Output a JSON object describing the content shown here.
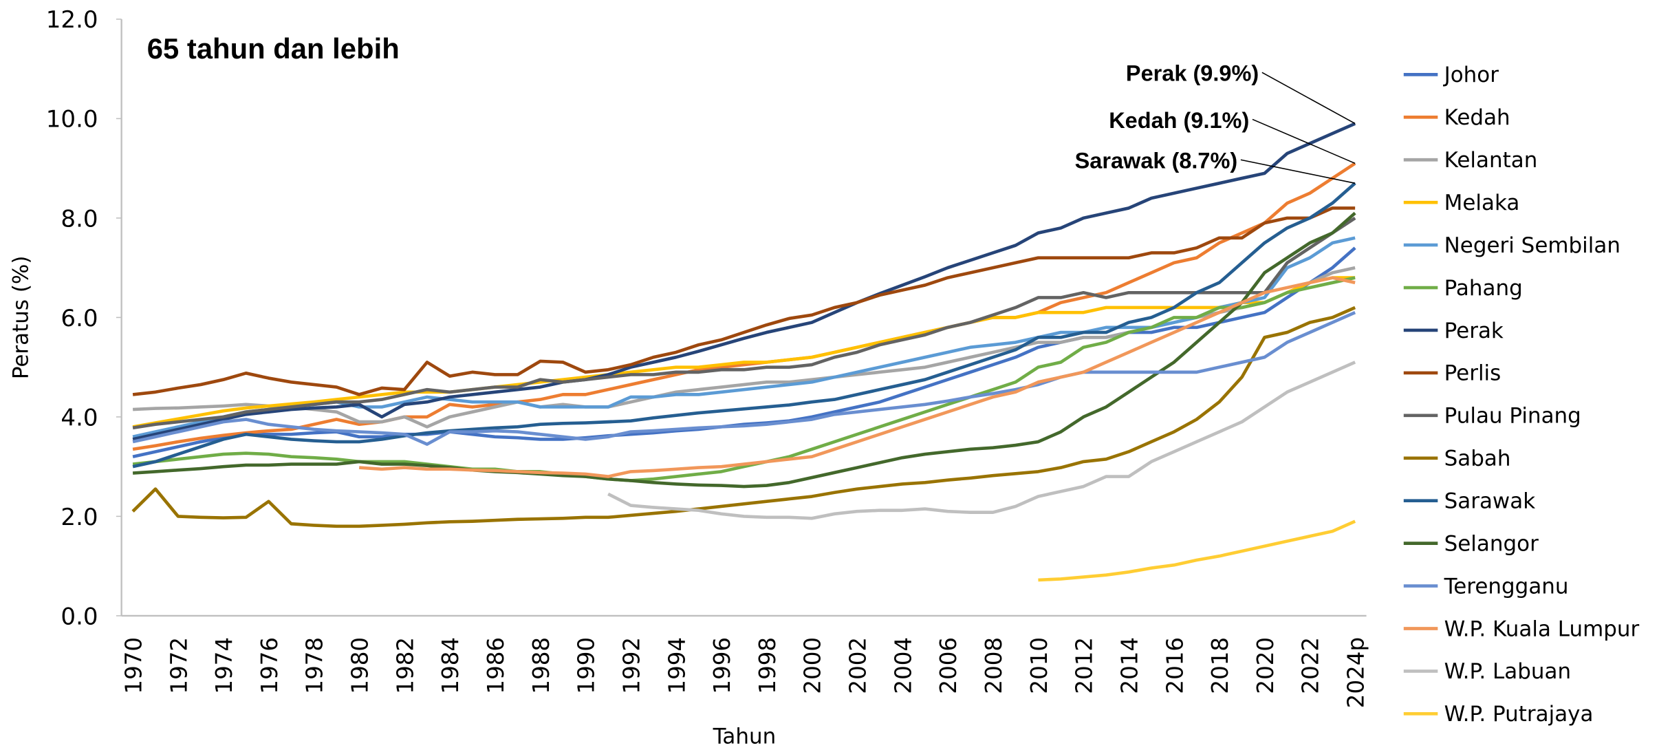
{
  "chart_data": {
    "type": "line",
    "title": "65 tahun dan lebih",
    "x_label": "Tahun",
    "y_label": "Peratus (%)",
    "legend": "right",
    "grid": false,
    "ylim": [
      0,
      12
    ],
    "yticks": [
      {
        "value": 0,
        "label": "0.0"
      },
      {
        "value": 2,
        "label": "2.0"
      },
      {
        "value": 4,
        "label": "4.0"
      },
      {
        "value": 6,
        "label": "6.0"
      },
      {
        "value": 8,
        "label": "8.0"
      },
      {
        "value": 10,
        "label": "10.0"
      },
      {
        "value": 12,
        "label": "12.0"
      }
    ],
    "categories": [
      "1970",
      null,
      "1972",
      null,
      "1974",
      null,
      "1976",
      null,
      "1978",
      null,
      "1980",
      null,
      "1982",
      null,
      "1984",
      null,
      "1986",
      null,
      "1988",
      null,
      "1990",
      null,
      "1992",
      null,
      "1994",
      null,
      "1996",
      null,
      "1998",
      null,
      "2000",
      null,
      "2002",
      null,
      "2004",
      null,
      "2006",
      null,
      "2008",
      null,
      "2010",
      null,
      "2012",
      null,
      "2014",
      null,
      "2016",
      null,
      "2018",
      null,
      "2020",
      null,
      "2022",
      null,
      "2024p"
    ],
    "annotations": [
      {
        "text": "Perak (9.9%)",
        "series": "Perak"
      },
      {
        "text": "Kedah (9.1%)",
        "series": "Kedah"
      },
      {
        "text": "Sarawak (8.7%)",
        "series": "Sarawak"
      }
    ],
    "series": [
      {
        "name": "Johor",
        "color": "#4472C4",
        "values": [
          3.2,
          3.3,
          3.4,
          3.5,
          3.58,
          3.65,
          3.65,
          3.65,
          3.68,
          3.7,
          3.6,
          3.6,
          3.65,
          3.65,
          3.7,
          3.65,
          3.6,
          3.58,
          3.55,
          3.55,
          3.58,
          3.62,
          3.65,
          3.68,
          3.72,
          3.75,
          3.8,
          3.85,
          3.88,
          3.92,
          4.0,
          4.1,
          4.2,
          4.3,
          4.45,
          4.6,
          4.75,
          4.9,
          5.05,
          5.2,
          5.4,
          5.5,
          5.6,
          5.6,
          5.7,
          5.7,
          5.8,
          5.8,
          5.9,
          6.0,
          6.1,
          6.4,
          6.7,
          7.0,
          7.4
        ]
      },
      {
        "name": "Kedah",
        "color": "#ED7D31",
        "values": [
          3.35,
          3.42,
          3.5,
          3.57,
          3.63,
          3.68,
          3.72,
          3.75,
          3.85,
          3.95,
          3.85,
          3.9,
          4.0,
          4.0,
          4.25,
          4.2,
          4.25,
          4.3,
          4.35,
          4.45,
          4.45,
          4.55,
          4.65,
          4.75,
          4.85,
          4.95,
          5.0,
          5.05,
          5.1,
          5.15,
          5.2,
          5.3,
          5.4,
          5.5,
          5.6,
          5.7,
          5.8,
          5.9,
          6.0,
          6.0,
          6.1,
          6.3,
          6.4,
          6.5,
          6.7,
          6.9,
          7.1,
          7.2,
          7.5,
          7.7,
          7.9,
          8.3,
          8.5,
          8.8,
          9.1
        ]
      },
      {
        "name": "Kelantan",
        "color": "#A5A5A5",
        "values": [
          4.15,
          4.17,
          4.18,
          4.2,
          4.22,
          4.25,
          4.22,
          4.2,
          4.15,
          4.1,
          3.9,
          3.9,
          4.0,
          3.8,
          4.0,
          4.1,
          4.2,
          4.3,
          4.2,
          4.25,
          4.2,
          4.2,
          4.3,
          4.4,
          4.5,
          4.55,
          4.6,
          4.65,
          4.7,
          4.7,
          4.75,
          4.8,
          4.85,
          4.9,
          4.95,
          5.0,
          5.1,
          5.2,
          5.3,
          5.4,
          5.5,
          5.5,
          5.6,
          5.6,
          5.7,
          5.8,
          5.9,
          6.0,
          6.1,
          6.2,
          6.3,
          6.5,
          6.7,
          6.9,
          7.0
        ]
      },
      {
        "name": "Melaka",
        "color": "#FFC000",
        "values": [
          3.8,
          3.88,
          3.96,
          4.04,
          4.12,
          4.18,
          4.22,
          4.26,
          4.3,
          4.35,
          4.4,
          4.45,
          4.5,
          4.5,
          4.5,
          4.55,
          4.6,
          4.65,
          4.7,
          4.75,
          4.8,
          4.85,
          4.9,
          4.95,
          5.0,
          5.0,
          5.05,
          5.1,
          5.1,
          5.15,
          5.2,
          5.3,
          5.4,
          5.5,
          5.6,
          5.7,
          5.8,
          5.9,
          6.0,
          6.0,
          6.1,
          6.1,
          6.1,
          6.2,
          6.2,
          6.2,
          6.2,
          6.2,
          6.2,
          6.3,
          6.3,
          6.5,
          6.7,
          6.8,
          6.8
        ]
      },
      {
        "name": "Negeri Sembilan",
        "color": "#5B9BD5",
        "values": [
          3.6,
          3.7,
          3.8,
          3.9,
          4.0,
          4.1,
          4.15,
          4.2,
          4.25,
          4.3,
          4.2,
          4.2,
          4.3,
          4.4,
          4.35,
          4.3,
          4.3,
          4.3,
          4.2,
          4.2,
          4.2,
          4.2,
          4.4,
          4.4,
          4.45,
          4.45,
          4.5,
          4.55,
          4.6,
          4.65,
          4.7,
          4.8,
          4.9,
          5.0,
          5.1,
          5.2,
          5.3,
          5.4,
          5.45,
          5.5,
          5.6,
          5.7,
          5.7,
          5.8,
          5.8,
          5.8,
          5.9,
          6.0,
          6.2,
          6.3,
          6.4,
          7.0,
          7.2,
          7.5,
          7.6
        ]
      },
      {
        "name": "Pahang",
        "color": "#70AD47",
        "values": [
          3.05,
          3.1,
          3.15,
          3.2,
          3.25,
          3.27,
          3.25,
          3.2,
          3.18,
          3.15,
          3.1,
          3.1,
          3.1,
          3.05,
          3.0,
          2.95,
          2.95,
          2.9,
          2.9,
          2.85,
          2.8,
          2.75,
          2.72,
          2.75,
          2.8,
          2.85,
          2.9,
          3.0,
          3.1,
          3.2,
          3.35,
          3.5,
          3.65,
          3.8,
          3.95,
          4.1,
          4.25,
          4.4,
          4.55,
          4.7,
          5.0,
          5.1,
          5.4,
          5.5,
          5.7,
          5.8,
          6.0,
          6.0,
          6.2,
          6.2,
          6.3,
          6.5,
          6.6,
          6.7,
          6.8
        ]
      },
      {
        "name": "Perak",
        "color": "#264478",
        "values": [
          3.55,
          3.65,
          3.75,
          3.85,
          3.95,
          4.05,
          4.1,
          4.15,
          4.18,
          4.2,
          4.25,
          4.0,
          4.25,
          4.3,
          4.4,
          4.45,
          4.5,
          4.55,
          4.6,
          4.7,
          4.75,
          4.85,
          5.0,
          5.1,
          5.2,
          5.32,
          5.45,
          5.58,
          5.7,
          5.8,
          5.9,
          6.1,
          6.3,
          6.48,
          6.65,
          6.82,
          7.0,
          7.15,
          7.3,
          7.45,
          7.7,
          7.8,
          8.0,
          8.1,
          8.2,
          8.4,
          8.5,
          8.6,
          8.7,
          8.8,
          8.9,
          9.3,
          9.5,
          9.7,
          9.9
        ]
      },
      {
        "name": "Perlis",
        "color": "#9E480E",
        "values": [
          4.45,
          4.5,
          4.58,
          4.65,
          4.75,
          4.88,
          4.78,
          4.7,
          4.65,
          4.6,
          4.45,
          4.58,
          4.55,
          5.1,
          4.82,
          4.9,
          4.85,
          4.85,
          5.12,
          5.1,
          4.9,
          4.95,
          5.05,
          5.2,
          5.3,
          5.45,
          5.55,
          5.7,
          5.85,
          5.98,
          6.05,
          6.2,
          6.3,
          6.45,
          6.55,
          6.65,
          6.8,
          6.9,
          7.0,
          7.1,
          7.2,
          7.2,
          7.2,
          7.2,
          7.2,
          7.3,
          7.3,
          7.4,
          7.6,
          7.6,
          7.9,
          8.0,
          8.0,
          8.2,
          8.2
        ]
      },
      {
        "name": "Pulau Pinang",
        "color": "#636363",
        "values": [
          3.78,
          3.85,
          3.9,
          3.95,
          4.0,
          4.1,
          4.15,
          4.2,
          4.25,
          4.3,
          4.3,
          4.35,
          4.45,
          4.55,
          4.5,
          4.55,
          4.6,
          4.6,
          4.75,
          4.7,
          4.75,
          4.8,
          4.85,
          4.85,
          4.9,
          4.9,
          4.95,
          4.95,
          5.0,
          5.0,
          5.05,
          5.2,
          5.3,
          5.45,
          5.55,
          5.65,
          5.8,
          5.9,
          6.05,
          6.2,
          6.4,
          6.4,
          6.5,
          6.4,
          6.5,
          6.5,
          6.5,
          6.5,
          6.5,
          6.5,
          6.5,
          7.1,
          7.4,
          7.7,
          8.0
        ]
      },
      {
        "name": "Sabah",
        "color": "#997300",
        "values": [
          2.1,
          2.55,
          2.0,
          1.98,
          1.97,
          1.98,
          2.3,
          1.85,
          1.82,
          1.8,
          1.8,
          1.82,
          1.84,
          1.87,
          1.89,
          1.9,
          1.92,
          1.94,
          1.95,
          1.96,
          1.98,
          1.98,
          2.02,
          2.06,
          2.1,
          2.15,
          2.2,
          2.25,
          2.3,
          2.35,
          2.4,
          2.48,
          2.55,
          2.6,
          2.65,
          2.68,
          2.73,
          2.77,
          2.82,
          2.86,
          2.9,
          2.98,
          3.1,
          3.15,
          3.3,
          3.5,
          3.7,
          3.95,
          4.3,
          4.8,
          5.6,
          5.7,
          5.9,
          6.0,
          6.2
        ]
      },
      {
        "name": "Sarawak",
        "color": "#255E91",
        "values": [
          3.0,
          3.1,
          3.25,
          3.4,
          3.55,
          3.65,
          3.6,
          3.55,
          3.52,
          3.5,
          3.5,
          3.55,
          3.62,
          3.68,
          3.72,
          3.75,
          3.78,
          3.8,
          3.85,
          3.87,
          3.88,
          3.9,
          3.92,
          3.98,
          4.03,
          4.08,
          4.12,
          4.16,
          4.2,
          4.24,
          4.3,
          4.35,
          4.45,
          4.55,
          4.65,
          4.75,
          4.9,
          5.05,
          5.2,
          5.35,
          5.6,
          5.6,
          5.7,
          5.7,
          5.9,
          6.0,
          6.2,
          6.5,
          6.7,
          7.1,
          7.5,
          7.8,
          8.0,
          8.3,
          8.7
        ]
      },
      {
        "name": "Selangor",
        "color": "#43682B",
        "values": [
          2.87,
          2.9,
          2.93,
          2.96,
          3.0,
          3.03,
          3.03,
          3.05,
          3.05,
          3.05,
          3.1,
          3.05,
          3.05,
          3.02,
          2.98,
          2.93,
          2.9,
          2.88,
          2.85,
          2.82,
          2.8,
          2.75,
          2.72,
          2.68,
          2.65,
          2.63,
          2.62,
          2.6,
          2.62,
          2.68,
          2.78,
          2.88,
          2.98,
          3.08,
          3.18,
          3.25,
          3.3,
          3.35,
          3.38,
          3.43,
          3.5,
          3.7,
          4.0,
          4.2,
          4.5,
          4.8,
          5.1,
          5.5,
          5.9,
          6.3,
          6.9,
          7.2,
          7.5,
          7.7,
          8.1
        ]
      },
      {
        "name": "Terengganu",
        "color": "#698ED0",
        "values": [
          3.5,
          3.6,
          3.7,
          3.8,
          3.9,
          3.95,
          3.85,
          3.8,
          3.75,
          3.72,
          3.7,
          3.68,
          3.65,
          3.45,
          3.7,
          3.7,
          3.72,
          3.7,
          3.65,
          3.6,
          3.55,
          3.6,
          3.7,
          3.72,
          3.75,
          3.78,
          3.8,
          3.82,
          3.85,
          3.9,
          3.95,
          4.05,
          4.1,
          4.15,
          4.2,
          4.25,
          4.32,
          4.4,
          4.47,
          4.55,
          4.65,
          4.8,
          4.9,
          4.9,
          4.9,
          4.9,
          4.9,
          4.9,
          5.0,
          5.1,
          5.2,
          5.5,
          5.7,
          5.9,
          6.1
        ]
      },
      {
        "name": "W.P. Kuala Lumpur",
        "color": "#F1975A",
        "values": [
          null,
          null,
          null,
          null,
          null,
          null,
          null,
          null,
          null,
          null,
          2.98,
          2.95,
          2.98,
          2.95,
          2.95,
          2.93,
          2.92,
          2.9,
          2.88,
          2.87,
          2.85,
          2.8,
          2.9,
          2.92,
          2.95,
          2.98,
          3.0,
          3.05,
          3.1,
          3.15,
          3.2,
          3.35,
          3.5,
          3.65,
          3.8,
          3.95,
          4.1,
          4.25,
          4.4,
          4.5,
          4.7,
          4.8,
          4.9,
          5.1,
          5.3,
          5.5,
          5.7,
          5.9,
          6.1,
          6.3,
          6.5,
          6.6,
          6.7,
          6.8,
          6.7
        ]
      },
      {
        "name": "W.P. Labuan",
        "color": "#BFBFBF",
        "values": [
          null,
          null,
          null,
          null,
          null,
          null,
          null,
          null,
          null,
          null,
          null,
          null,
          null,
          null,
          null,
          null,
          null,
          null,
          null,
          null,
          null,
          2.45,
          2.22,
          2.18,
          2.15,
          2.12,
          2.05,
          2.0,
          1.98,
          1.98,
          1.96,
          2.05,
          2.1,
          2.12,
          2.12,
          2.15,
          2.1,
          2.08,
          2.08,
          2.2,
          2.4,
          2.5,
          2.6,
          2.8,
          2.8,
          3.1,
          3.3,
          3.5,
          3.7,
          3.9,
          4.2,
          4.5,
          4.7,
          4.9,
          5.1
        ]
      },
      {
        "name": "W.P. Putrajaya",
        "color": "#FFCD33",
        "values": [
          null,
          null,
          null,
          null,
          null,
          null,
          null,
          null,
          null,
          null,
          null,
          null,
          null,
          null,
          null,
          null,
          null,
          null,
          null,
          null,
          null,
          null,
          null,
          null,
          null,
          null,
          null,
          null,
          null,
          null,
          null,
          null,
          null,
          null,
          null,
          null,
          null,
          null,
          null,
          null,
          0.72,
          0.74,
          0.78,
          0.82,
          0.88,
          0.96,
          1.02,
          1.12,
          1.2,
          1.3,
          1.4,
          1.5,
          1.6,
          1.7,
          1.9
        ]
      }
    ]
  }
}
